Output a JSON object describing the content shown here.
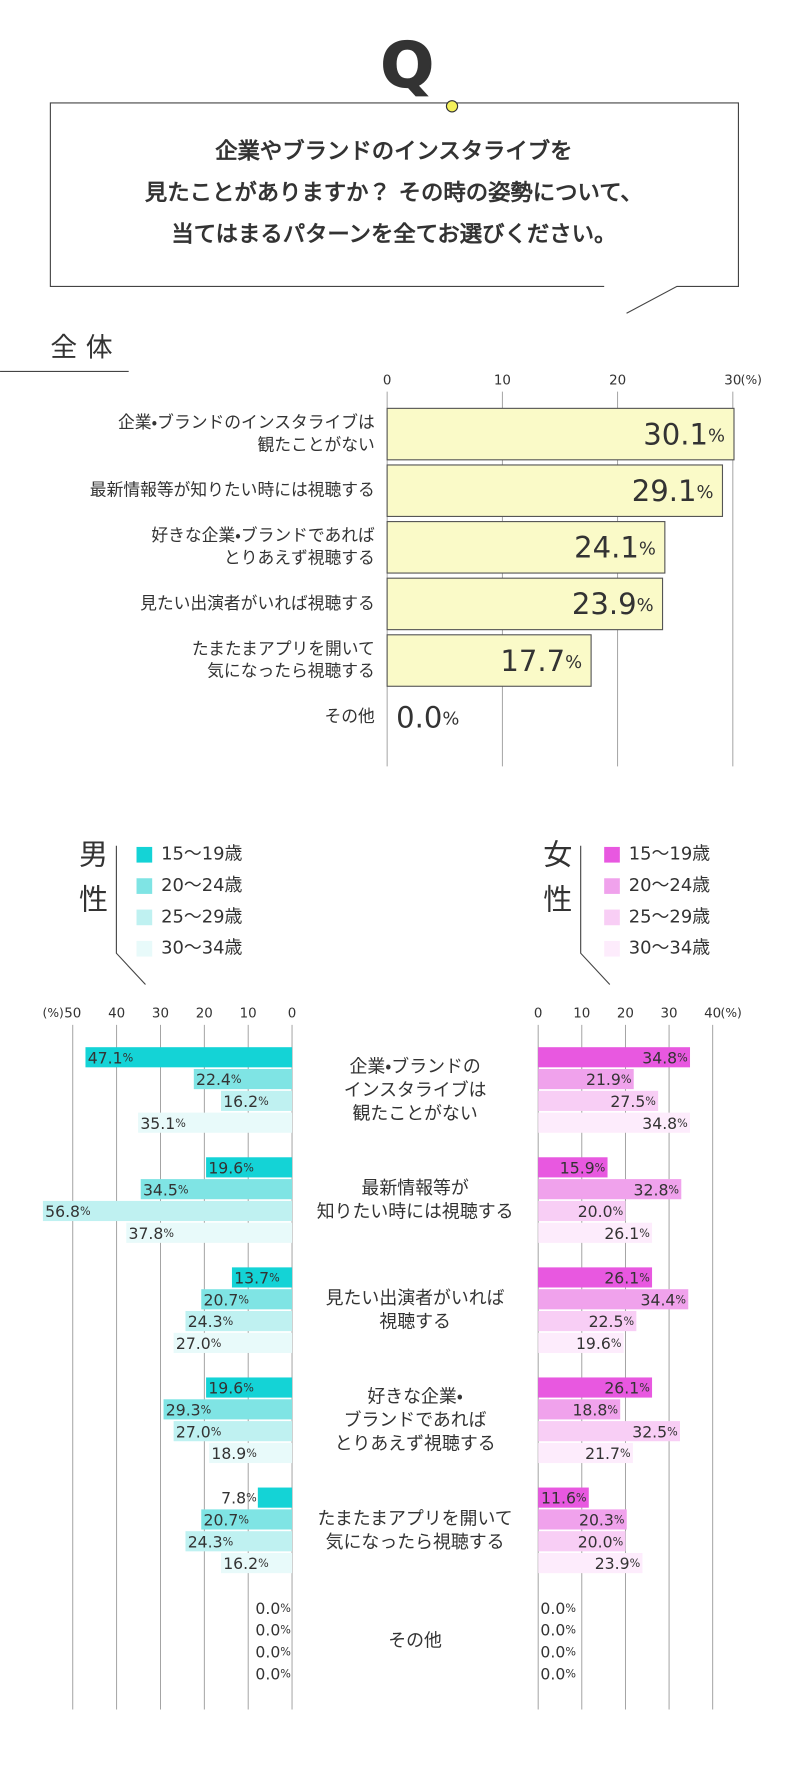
{
  "question": {
    "badge": "Q",
    "lines": [
      "企業やブランドのインスタライブを",
      "見たことがありますか？ その時の姿勢について、",
      "当てはまるパターンを全てお選びください。"
    ]
  },
  "chart_data": [
    {
      "type": "bar",
      "title": "全 体",
      "x_unit": "(%)",
      "color": "#fafac8",
      "border_color": "#555555",
      "categories": [
        "企業・ブランドのインスタライブは\n観たことがない",
        "最新情報等が知りたい時には視聴する",
        "好きな企業・ブランドであれば\nとりあえず視聴する",
        "見たい出演者がいれば視聴する",
        "たまたまアプリを開いて\n気になったら視聴する",
        "その他"
      ],
      "values": [
        30.1,
        29.1,
        24.1,
        23.9,
        17.7,
        0.0
      ],
      "value_labels": [
        "30.1%",
        "29.1%",
        "24.1%",
        "23.9%",
        "17.7%",
        "0.0%"
      ],
      "xlim": [
        0,
        30
      ],
      "xticks": [
        0,
        10,
        20,
        30
      ],
      "grid": true
    },
    {
      "type": "grouped_bar",
      "title": "男性",
      "x_unit": "(%)",
      "x_reversed": true,
      "categories": [
        "企業・ブランドの\nインスタライブは\n観たことがない",
        "最新情報等が\n知りたい時には視聴する",
        "見たい出演者がいれば\n視聴する",
        "好きな企業・\nブランドであれば\nとりあえず視聴する",
        "たまたまアプリを開いて\n気になったら視聴する",
        "その他"
      ],
      "series": [
        {
          "name": "15〜19歳",
          "color": "#14d3d6",
          "values": [
            47.1,
            19.6,
            13.7,
            19.6,
            7.8,
            0.0
          ],
          "value_labels": [
            "47.1%",
            "19.6%",
            "13.7%",
            "19.6%",
            "7.8%",
            "0.0%"
          ]
        },
        {
          "name": "20〜24歳",
          "color": "#7fe4e4",
          "values": [
            22.4,
            34.5,
            20.7,
            29.3,
            20.7,
            0.0
          ],
          "value_labels": [
            "22.4%",
            "34.5%",
            "20.7%",
            "29.3%",
            "20.7%",
            "0.0%"
          ]
        },
        {
          "name": "25〜29歳",
          "color": "#bff1f1",
          "values": [
            16.2,
            56.8,
            24.3,
            27.0,
            24.3,
            0.0
          ],
          "value_labels": [
            "16.2%",
            "56.8%",
            "24.3%",
            "27.0%",
            "24.3%",
            "0.0%"
          ]
        },
        {
          "name": "30〜34歳",
          "color": "#e8fafa",
          "values": [
            35.1,
            37.8,
            27.0,
            18.9,
            16.2,
            0.0
          ],
          "value_labels": [
            "35.1%",
            "37.8%",
            "27.0%",
            "18.9%",
            "16.2%",
            "0.0%"
          ]
        }
      ],
      "xlim": [
        0,
        50
      ],
      "xticks": [
        0,
        10,
        20,
        30,
        40,
        50
      ],
      "grid": true
    },
    {
      "type": "grouped_bar",
      "title": "女性",
      "x_unit": "(%)",
      "x_reversed": false,
      "categories": [
        "企業・ブランドの\nインスタライブは\n観たことがない",
        "最新情報等が\n知りたい時には視聴する",
        "見たい出演者がいれば\n視聴する",
        "好きな企業・\nブランドであれば\nとりあえず視聴する",
        "たまたまアプリを開いて\n気になったら視聴する",
        "その他"
      ],
      "series": [
        {
          "name": "15〜19歳",
          "color": "#e858e0",
          "values": [
            34.8,
            15.9,
            26.1,
            26.1,
            11.6,
            0.0
          ],
          "value_labels": [
            "34.8%",
            "15.9%",
            "26.1%",
            "26.1%",
            "11.6%",
            "0.0%"
          ]
        },
        {
          "name": "20〜24歳",
          "color": "#f0a2ec",
          "values": [
            21.9,
            32.8,
            34.4,
            18.8,
            20.3,
            0.0
          ],
          "value_labels": [
            "21.9%",
            "32.8%",
            "34.4%",
            "18.8%",
            "20.3%",
            "0.0%"
          ]
        },
        {
          "name": "25〜29歳",
          "color": "#f8cef5",
          "values": [
            27.5,
            20.0,
            22.5,
            32.5,
            20.0,
            0.0
          ],
          "value_labels": [
            "27.5%",
            "20.0%",
            "22.5%",
            "32.5%",
            "20.0%",
            "0.0%"
          ]
        },
        {
          "name": "30〜34歳",
          "color": "#fdecfc",
          "values": [
            34.8,
            26.1,
            19.6,
            21.7,
            23.9,
            0.0
          ],
          "value_labels": [
            "34.8%",
            "26.1%",
            "19.6%",
            "21.7%",
            "23.9%",
            "0.0%"
          ]
        }
      ],
      "xlim": [
        0,
        40
      ],
      "xticks": [
        0,
        10,
        20,
        30,
        40
      ],
      "grid": true
    }
  ]
}
